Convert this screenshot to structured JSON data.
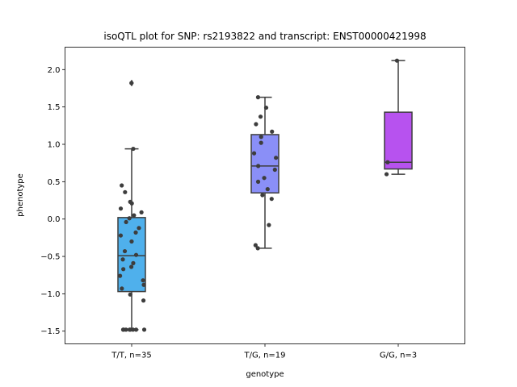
{
  "chart_data": {
    "type": "box",
    "title": "isoQTL plot for SNP: rs2193822 and transcript: ENST00000421998",
    "xlabel": "genotype",
    "ylabel": "phenotype",
    "ylim": [
      -1.67,
      2.3
    ],
    "yticks": [
      -1.5,
      -1.0,
      -0.5,
      0.0,
      0.5,
      1.0,
      1.5,
      2.0
    ],
    "ytick_labels": [
      "−1.5",
      "−1.0",
      "−0.5",
      "0.0",
      "0.5",
      "1.0",
      "1.5",
      "2.0"
    ],
    "grid": false,
    "groups": [
      {
        "label": "T/T, n=35",
        "color": "#4fb0ec",
        "q1": -0.97,
        "median": -0.49,
        "q3": 0.02,
        "whisker_low": -1.48,
        "whisker_high": 0.94,
        "outliers": [
          1.82
        ],
        "points": [
          1.82,
          0.94,
          0.45,
          0.36,
          0.23,
          0.21,
          0.14,
          0.09,
          0.05,
          0.01,
          -0.04,
          -0.12,
          -0.18,
          -0.22,
          -0.3,
          -0.43,
          -0.48,
          -0.54,
          -0.59,
          -0.64,
          -0.67,
          -0.76,
          -0.82,
          -0.88,
          -0.93,
          -1.01,
          -1.09,
          -1.48,
          -1.48,
          -1.48,
          -1.48,
          -1.48,
          -1.48,
          -1.48,
          -1.48
        ]
      },
      {
        "label": "T/G, n=19",
        "color": "#8a8ff7",
        "q1": 0.35,
        "median": 0.71,
        "q3": 1.13,
        "whisker_low": -0.39,
        "whisker_high": 1.63,
        "outliers": [],
        "points": [
          1.63,
          1.49,
          1.37,
          1.27,
          1.17,
          1.1,
          1.02,
          0.88,
          0.82,
          0.71,
          0.66,
          0.55,
          0.5,
          0.4,
          0.32,
          0.27,
          -0.08,
          -0.35,
          -0.39
        ]
      },
      {
        "label": "G/G, n=3",
        "color": "#b752ef",
        "q1": 0.67,
        "median": 0.76,
        "q3": 1.43,
        "whisker_low": 0.6,
        "whisker_high": 2.12,
        "outliers": [],
        "points": [
          2.12,
          0.76,
          0.6
        ]
      }
    ]
  }
}
